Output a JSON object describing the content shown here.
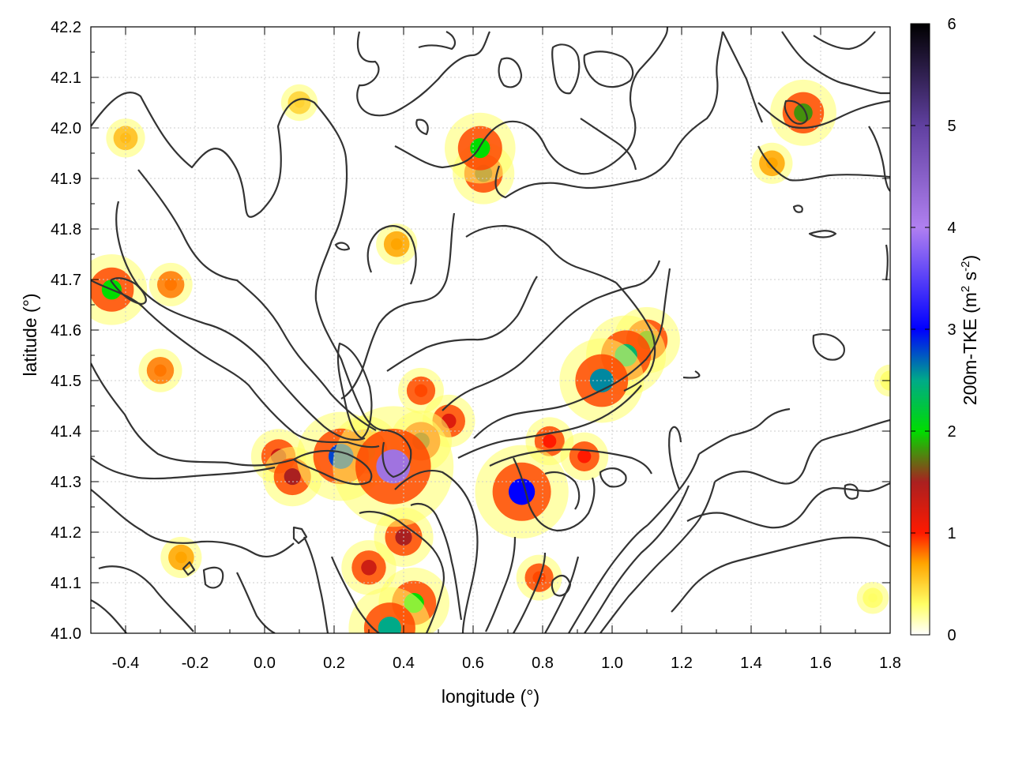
{
  "chart_data": {
    "type": "heatmap",
    "title": "",
    "xlabel": "longitude (°)",
    "ylabel": "latitude (°)",
    "xlim": [
      -0.5,
      1.8
    ],
    "ylim": [
      41.0,
      42.2
    ],
    "x_ticks": [
      -0.4,
      -0.2,
      0.0,
      0.2,
      0.4,
      0.6,
      0.8,
      1.0,
      1.2,
      1.4,
      1.6,
      1.8
    ],
    "x_tick_labels": [
      "-0.4",
      "-0.2",
      "0.0",
      "0.2",
      "0.4",
      "0.6",
      "0.8",
      "1.0",
      "1.2",
      "1.4",
      "1.6",
      "1.8"
    ],
    "y_ticks": [
      41.0,
      41.1,
      41.2,
      41.3,
      41.4,
      41.5,
      41.6,
      41.7,
      41.8,
      41.9,
      42.0,
      42.1,
      42.2
    ],
    "y_tick_labels": [
      "41.0",
      "41.1",
      "41.2",
      "41.3",
      "41.4",
      "41.5",
      "41.6",
      "41.7",
      "41.8",
      "41.9",
      "42.0",
      "42.1",
      "42.2"
    ],
    "grid": true,
    "colorbar": {
      "label_main": "200m-TKE (m",
      "label_sup1": "2",
      "label_mid": " s",
      "label_sup2": "-2",
      "label_end": ")",
      "range": [
        0,
        6
      ],
      "ticks": [
        0,
        1,
        2,
        3,
        4,
        5,
        6
      ],
      "tick_labels": [
        "0",
        "1",
        "2",
        "3",
        "4",
        "5",
        "6"
      ],
      "stops": [
        {
          "value": 0.0,
          "color": "#ffffff"
        },
        {
          "value": 0.3,
          "color": "#ffff66"
        },
        {
          "value": 0.7,
          "color": "#ffa500"
        },
        {
          "value": 1.0,
          "color": "#ff1a00"
        },
        {
          "value": 1.5,
          "color": "#aa2020"
        },
        {
          "value": 2.0,
          "color": "#00dd00"
        },
        {
          "value": 2.5,
          "color": "#00aa88"
        },
        {
          "value": 3.0,
          "color": "#0000ff"
        },
        {
          "value": 4.0,
          "color": "#b080f0"
        },
        {
          "value": 5.0,
          "color": "#6040a0"
        },
        {
          "value": 6.0,
          "color": "#000000"
        }
      ]
    },
    "hotspots": [
      {
        "lon": 0.37,
        "lat": 41.33,
        "tke": 4.2
      },
      {
        "lon": 0.22,
        "lat": 41.35,
        "tke": 2.8
      },
      {
        "lon": 0.29,
        "lat": 41.36,
        "tke": 2.0
      },
      {
        "lon": 0.08,
        "lat": 41.31,
        "tke": 1.5
      },
      {
        "lon": 0.04,
        "lat": 41.35,
        "tke": 1.3
      },
      {
        "lon": 0.45,
        "lat": 41.38,
        "tke": 1.6
      },
      {
        "lon": 0.53,
        "lat": 41.42,
        "tke": 1.2
      },
      {
        "lon": 0.74,
        "lat": 41.28,
        "tke": 3.0
      },
      {
        "lon": 0.97,
        "lat": 41.5,
        "tke": 2.6
      },
      {
        "lon": 1.04,
        "lat": 41.55,
        "tke": 2.4
      },
      {
        "lon": 1.1,
        "lat": 41.58,
        "tke": 1.8
      },
      {
        "lon": 0.36,
        "lat": 41.01,
        "tke": 2.5
      },
      {
        "lon": 0.43,
        "lat": 41.06,
        "tke": 2.0
      },
      {
        "lon": 0.4,
        "lat": 41.19,
        "tke": 1.5
      },
      {
        "lon": 0.3,
        "lat": 41.13,
        "tke": 1.3
      },
      {
        "lon": -0.44,
        "lat": 41.68,
        "tke": 2.0
      },
      {
        "lon": 0.62,
        "lat": 41.96,
        "tke": 2.0
      },
      {
        "lon": 0.63,
        "lat": 41.91,
        "tke": 1.6
      },
      {
        "lon": 1.55,
        "lat": 42.03,
        "tke": 1.8
      },
      {
        "lon": 0.82,
        "lat": 41.38,
        "tke": 1.0
      },
      {
        "lon": 0.92,
        "lat": 41.35,
        "tke": 1.0
      },
      {
        "lon": 0.79,
        "lat": 41.11,
        "tke": 0.9
      },
      {
        "lon": 0.45,
        "lat": 41.48,
        "tke": 0.9
      },
      {
        "lon": -0.27,
        "lat": 41.69,
        "tke": 0.8
      },
      {
        "lon": -0.3,
        "lat": 41.52,
        "tke": 0.8
      },
      {
        "lon": -0.4,
        "lat": 41.98,
        "tke": 0.6
      },
      {
        "lon": 1.46,
        "lat": 41.93,
        "tke": 0.7
      },
      {
        "lon": 0.38,
        "lat": 41.77,
        "tke": 0.7
      },
      {
        "lon": -0.24,
        "lat": 41.15,
        "tke": 0.7
      },
      {
        "lon": 1.75,
        "lat": 41.07,
        "tke": 0.3
      },
      {
        "lon": 0.1,
        "lat": 42.05,
        "tke": 0.5
      },
      {
        "lon": 1.8,
        "lat": 41.5,
        "tke": 0.3
      }
    ]
  }
}
